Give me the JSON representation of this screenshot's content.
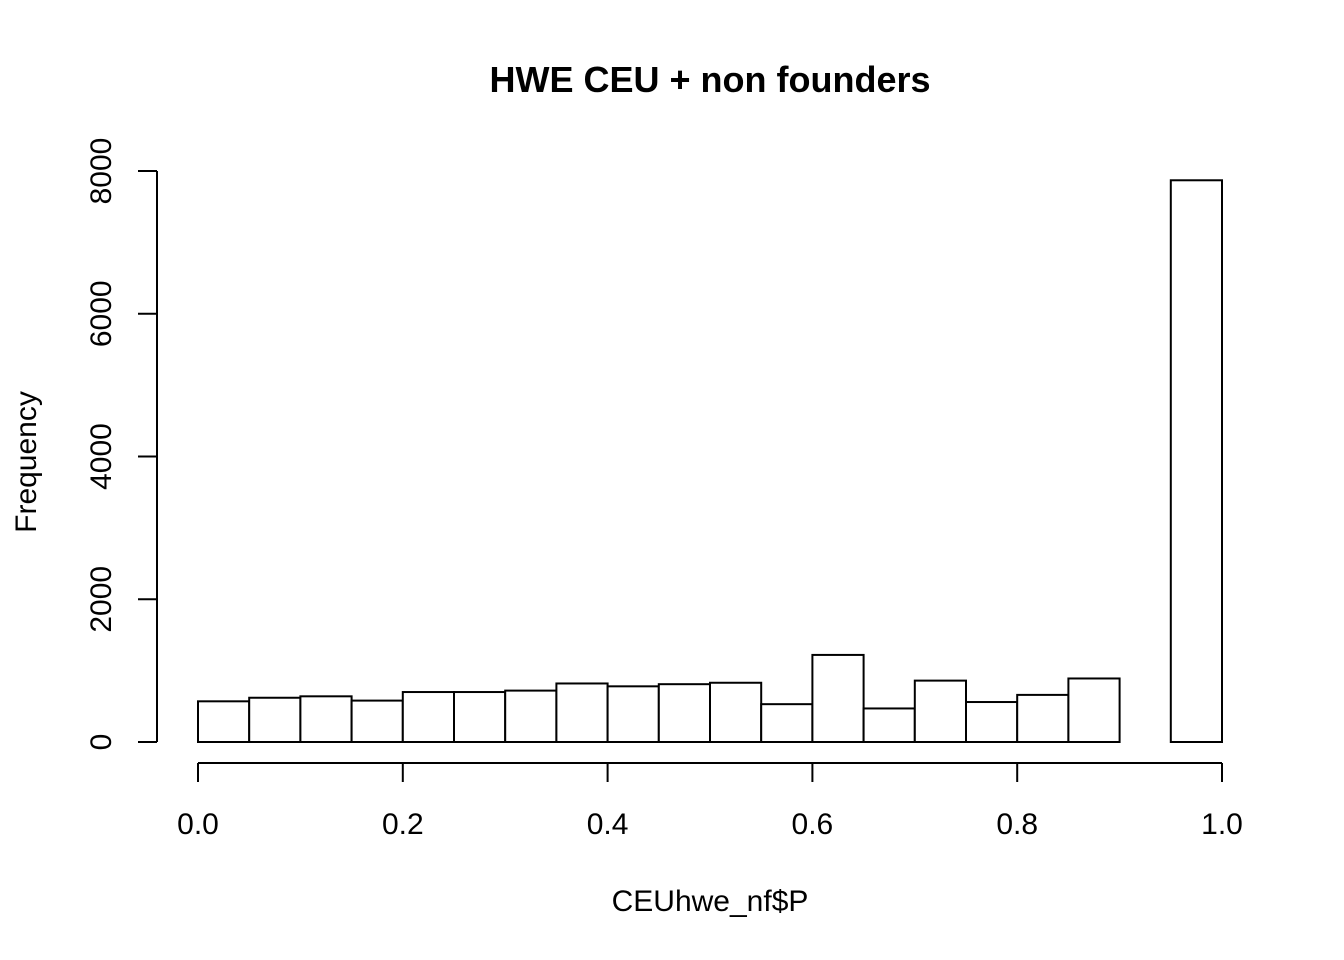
{
  "chart_data": {
    "type": "bar",
    "title": "HWE CEU + non founders",
    "xlabel": "CEUhwe_nf$P",
    "ylabel": "Frequency",
    "xlim": [
      0,
      1
    ],
    "ylim": [
      0,
      8000
    ],
    "bin_width": 0.05,
    "bins": [
      {
        "start": 0.0,
        "end": 0.05,
        "value": 570
      },
      {
        "start": 0.05,
        "end": 0.1,
        "value": 620
      },
      {
        "start": 0.1,
        "end": 0.15,
        "value": 640
      },
      {
        "start": 0.15,
        "end": 0.2,
        "value": 580
      },
      {
        "start": 0.2,
        "end": 0.25,
        "value": 700
      },
      {
        "start": 0.25,
        "end": 0.3,
        "value": 700
      },
      {
        "start": 0.3,
        "end": 0.35,
        "value": 720
      },
      {
        "start": 0.35,
        "end": 0.4,
        "value": 820
      },
      {
        "start": 0.4,
        "end": 0.45,
        "value": 780
      },
      {
        "start": 0.45,
        "end": 0.5,
        "value": 810
      },
      {
        "start": 0.5,
        "end": 0.55,
        "value": 830
      },
      {
        "start": 0.55,
        "end": 0.6,
        "value": 530
      },
      {
        "start": 0.6,
        "end": 0.65,
        "value": 1220
      },
      {
        "start": 0.65,
        "end": 0.7,
        "value": 470
      },
      {
        "start": 0.7,
        "end": 0.75,
        "value": 860
      },
      {
        "start": 0.75,
        "end": 0.8,
        "value": 560
      },
      {
        "start": 0.8,
        "end": 0.85,
        "value": 660
      },
      {
        "start": 0.85,
        "end": 0.9,
        "value": 890
      },
      {
        "start": 0.9,
        "end": 0.95,
        "value": 0
      },
      {
        "start": 0.95,
        "end": 1.0,
        "value": 7870
      }
    ],
    "x_ticks": [
      0.0,
      0.2,
      0.4,
      0.6,
      0.8,
      1.0
    ],
    "x_tick_labels": [
      "0.0",
      "0.2",
      "0.4",
      "0.6",
      "0.8",
      "1.0"
    ],
    "y_ticks": [
      0,
      2000,
      4000,
      6000,
      8000
    ],
    "y_tick_labels": [
      "0",
      "2000",
      "4000",
      "6000",
      "8000"
    ],
    "grid": false,
    "legend": "none"
  }
}
